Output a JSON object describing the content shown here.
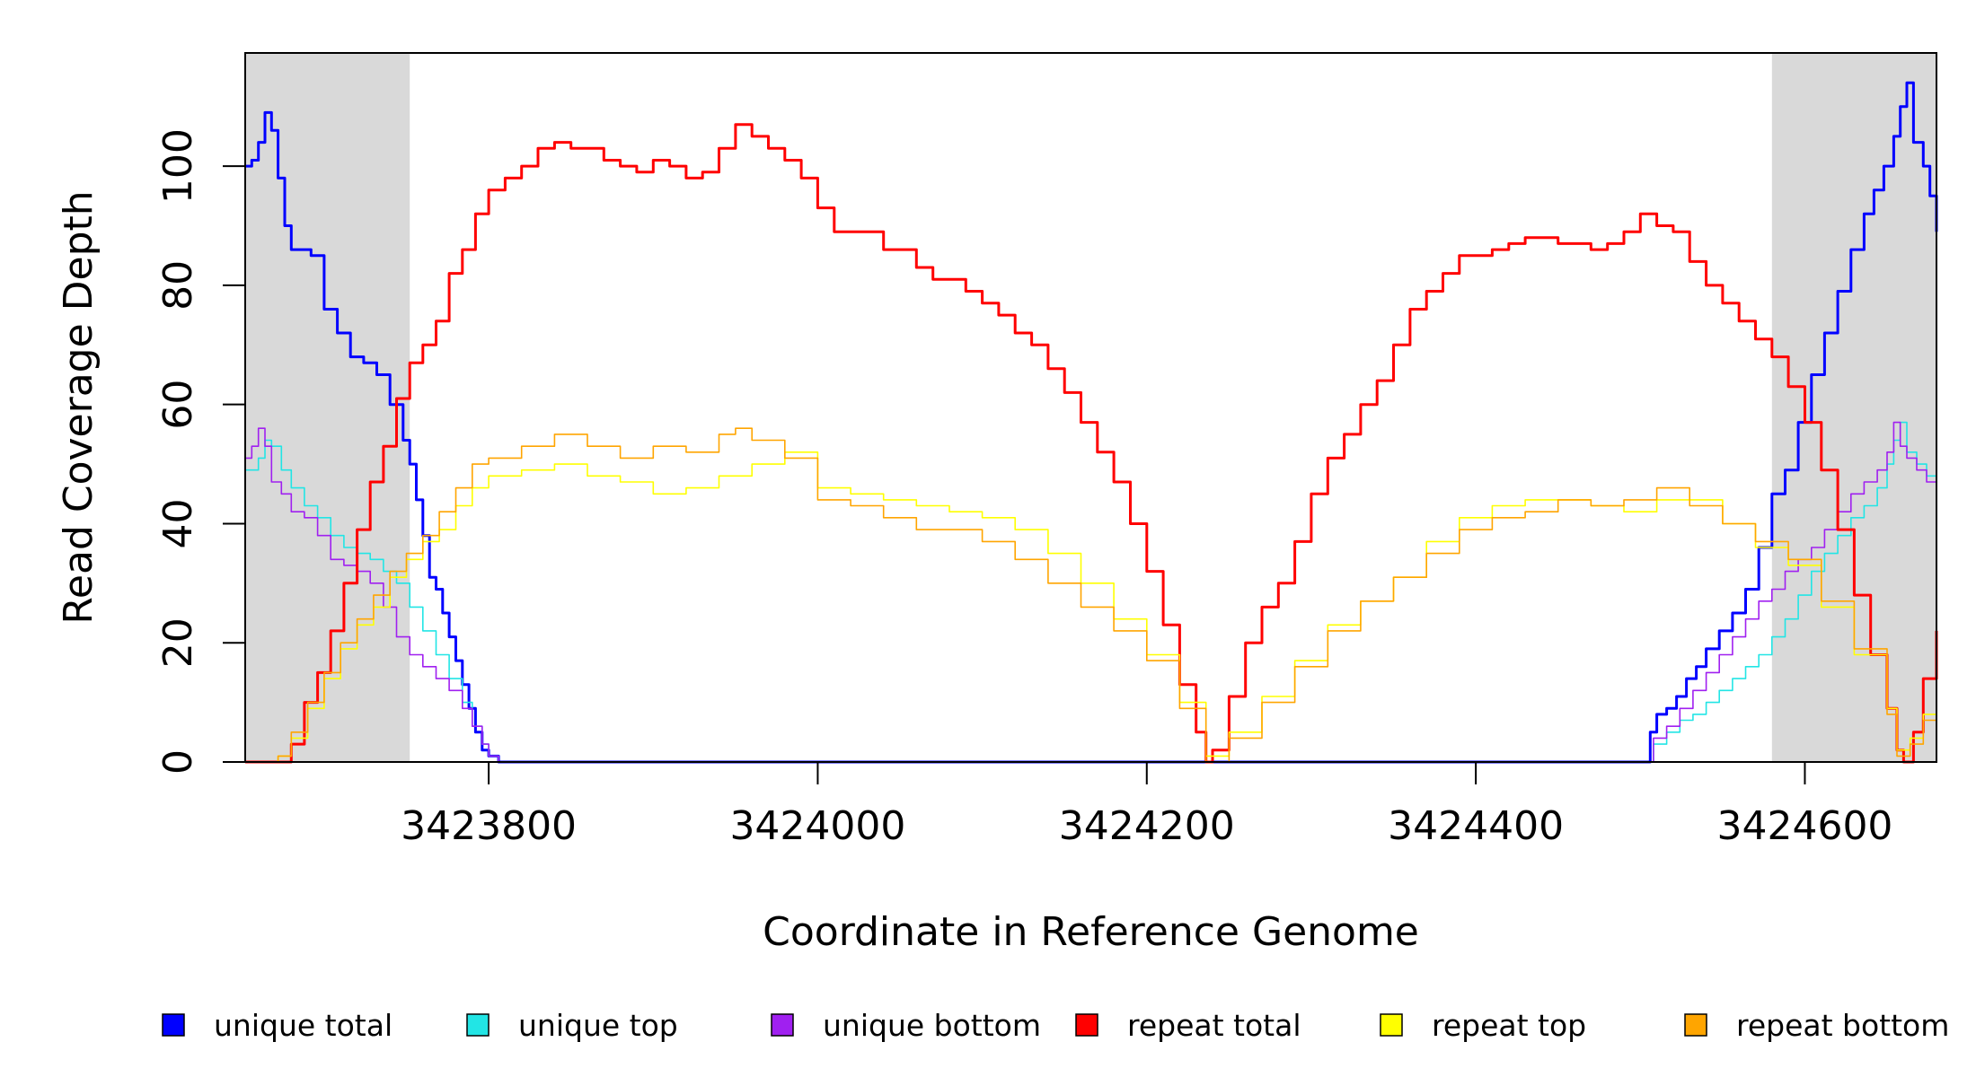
{
  "chart_data": {
    "type": "line",
    "title": "",
    "xlabel": "Coordinate in Reference Genome",
    "ylabel": "Read Coverage Depth",
    "xlim": [
      3423652,
      3424680
    ],
    "ylim": [
      0,
      119
    ],
    "x_ticks": [
      3423800,
      3424000,
      3424200,
      3424400,
      3424600
    ],
    "x_tick_labels": [
      "3423800",
      "3424000",
      "3424200",
      "3424400",
      "3424600"
    ],
    "y_ticks": [
      0,
      20,
      40,
      60,
      80,
      100
    ],
    "y_tick_labels": [
      "0",
      "20",
      "40",
      "60",
      "80",
      "100"
    ],
    "grid": false,
    "legend_position": "bottom",
    "shaded_regions": [
      {
        "x": [
          3423652,
          3423752
        ],
        "color": "#d9d9d9"
      },
      {
        "x": [
          3424580,
          3424680
        ],
        "color": "#d9d9d9"
      }
    ],
    "series": [
      {
        "name": "unique total",
        "color": "#0000ff",
        "width": 3,
        "x": [
          3423652,
          3423656,
          3423660,
          3423664,
          3423668,
          3423672,
          3423676,
          3423680,
          3423684,
          3423692,
          3423700,
          3423708,
          3423716,
          3423724,
          3423732,
          3423740,
          3423748,
          3423752,
          3423756,
          3423760,
          3423764,
          3423768,
          3423772,
          3423776,
          3423780,
          3423784,
          3423788,
          3423792,
          3423796,
          3423800,
          3423806,
          3423812,
          3423820,
          3424200,
          3424400,
          3424500,
          3424506,
          3424510,
          3424516,
          3424522,
          3424528,
          3424534,
          3424540,
          3424548,
          3424556,
          3424564,
          3424572,
          3424580,
          3424588,
          3424596,
          3424604,
          3424612,
          3424620,
          3424628,
          3424636,
          3424642,
          3424648,
          3424654,
          3424658,
          3424662,
          3424666,
          3424672,
          3424676,
          3424680
        ],
        "y": [
          100,
          101,
          104,
          109,
          106,
          98,
          90,
          86,
          86,
          85,
          76,
          72,
          68,
          67,
          65,
          60,
          54,
          50,
          44,
          38,
          31,
          29,
          25,
          21,
          17,
          13,
          9,
          5,
          2,
          1,
          0,
          0,
          0,
          0,
          0,
          0,
          5,
          8,
          9,
          11,
          14,
          16,
          19,
          22,
          25,
          29,
          36,
          45,
          49,
          57,
          65,
          72,
          79,
          86,
          92,
          96,
          100,
          105,
          110,
          114,
          104,
          100,
          95,
          89
        ]
      },
      {
        "name": "unique top",
        "color": "#22e5e5",
        "width": 1.6,
        "x": [
          3423652,
          3423660,
          3423664,
          3423668,
          3423674,
          3423680,
          3423688,
          3423696,
          3423704,
          3423712,
          3423720,
          3423728,
          3423736,
          3423744,
          3423752,
          3423760,
          3423768,
          3423776,
          3423784,
          3423790,
          3423796,
          3423800,
          3423806,
          3424200,
          3424500,
          3424508,
          3424516,
          3424524,
          3424532,
          3424540,
          3424548,
          3424556,
          3424564,
          3424572,
          3424580,
          3424588,
          3424596,
          3424604,
          3424612,
          3424620,
          3424628,
          3424636,
          3424644,
          3424650,
          3424654,
          3424658,
          3424662,
          3424668,
          3424674,
          3424680
        ],
        "y": [
          49,
          51,
          54,
          53,
          49,
          46,
          43,
          41,
          38,
          36,
          35,
          34,
          32,
          30,
          26,
          22,
          18,
          14,
          10,
          6,
          3,
          1,
          0,
          0,
          0,
          3,
          5,
          7,
          8,
          10,
          12,
          14,
          16,
          18,
          21,
          24,
          28,
          32,
          35,
          38,
          41,
          43,
          46,
          50,
          54,
          57,
          52,
          50,
          48,
          43
        ]
      },
      {
        "name": "unique bottom",
        "color": "#a020f0",
        "width": 1.6,
        "x": [
          3423652,
          3423656,
          3423660,
          3423664,
          3423668,
          3423674,
          3423680,
          3423688,
          3423696,
          3423704,
          3423712,
          3423720,
          3423728,
          3423736,
          3423744,
          3423752,
          3423760,
          3423768,
          3423776,
          3423784,
          3423790,
          3423796,
          3423800,
          3423806,
          3424200,
          3424500,
          3424508,
          3424516,
          3424524,
          3424532,
          3424540,
          3424548,
          3424556,
          3424564,
          3424572,
          3424580,
          3424588,
          3424596,
          3424604,
          3424612,
          3424620,
          3424628,
          3424636,
          3424644,
          3424650,
          3424654,
          3424658,
          3424662,
          3424668,
          3424674,
          3424680
        ],
        "y": [
          51,
          53,
          56,
          53,
          47,
          45,
          42,
          41,
          38,
          34,
          33,
          32,
          30,
          26,
          21,
          18,
          16,
          14,
          12,
          9,
          6,
          3,
          1,
          0,
          0,
          0,
          4,
          6,
          9,
          12,
          15,
          18,
          21,
          24,
          27,
          29,
          32,
          34,
          36,
          39,
          42,
          45,
          47,
          49,
          52,
          57,
          53,
          51,
          49,
          47,
          43
        ]
      },
      {
        "name": "repeat total",
        "color": "#ff0000",
        "width": 3,
        "x": [
          3423652,
          3423660,
          3423666,
          3423672,
          3423680,
          3423688,
          3423696,
          3423704,
          3423712,
          3423720,
          3423728,
          3423736,
          3423744,
          3423752,
          3423760,
          3423768,
          3423776,
          3423784,
          3423792,
          3423800,
          3423810,
          3423820,
          3423830,
          3423840,
          3423850,
          3423860,
          3423870,
          3423880,
          3423890,
          3423900,
          3423910,
          3423920,
          3423930,
          3423940,
          3423950,
          3423960,
          3423970,
          3423980,
          3423990,
          3424000,
          3424010,
          3424020,
          3424030,
          3424040,
          3424050,
          3424060,
          3424070,
          3424080,
          3424090,
          3424100,
          3424110,
          3424120,
          3424130,
          3424140,
          3424150,
          3424160,
          3424170,
          3424180,
          3424190,
          3424200,
          3424210,
          3424220,
          3424230,
          3424236,
          3424240,
          3424250,
          3424260,
          3424270,
          3424280,
          3424290,
          3424300,
          3424310,
          3424320,
          3424330,
          3424340,
          3424350,
          3424360,
          3424370,
          3424380,
          3424390,
          3424400,
          3424410,
          3424420,
          3424430,
          3424440,
          3424450,
          3424460,
          3424470,
          3424480,
          3424490,
          3424500,
          3424510,
          3424520,
          3424530,
          3424540,
          3424550,
          3424560,
          3424570,
          3424580,
          3424590,
          3424600,
          3424610,
          3424620,
          3424630,
          3424640,
          3424650,
          3424656,
          3424660,
          3424666,
          3424672,
          3424680
        ],
        "y": [
          0,
          0,
          0,
          0,
          3,
          10,
          15,
          22,
          30,
          39,
          47,
          53,
          61,
          67,
          70,
          74,
          82,
          86,
          92,
          96,
          98,
          100,
          103,
          104,
          103,
          103,
          101,
          100,
          99,
          101,
          100,
          98,
          99,
          103,
          107,
          105,
          103,
          101,
          98,
          93,
          89,
          89,
          89,
          86,
          86,
          83,
          81,
          81,
          79,
          77,
          75,
          72,
          70,
          66,
          62,
          57,
          52,
          47,
          40,
          32,
          23,
          13,
          5,
          0,
          2,
          11,
          20,
          26,
          30,
          37,
          45,
          51,
          55,
          60,
          64,
          70,
          76,
          79,
          82,
          85,
          85,
          86,
          87,
          88,
          88,
          87,
          87,
          86,
          87,
          89,
          92,
          90,
          89,
          84,
          80,
          77,
          74,
          71,
          68,
          63,
          57,
          49,
          39,
          28,
          18,
          9,
          2,
          0,
          5,
          14,
          22
        ]
      },
      {
        "name": "repeat top",
        "color": "#ffff00",
        "width": 1.6,
        "x": [
          3423652,
          3423664,
          3423672,
          3423680,
          3423690,
          3423700,
          3423710,
          3423720,
          3423730,
          3423740,
          3423750,
          3423760,
          3423770,
          3423780,
          3423790,
          3423800,
          3423820,
          3423840,
          3423860,
          3423880,
          3423900,
          3423920,
          3423940,
          3423960,
          3423980,
          3424000,
          3424020,
          3424040,
          3424060,
          3424080,
          3424100,
          3424120,
          3424140,
          3424160,
          3424180,
          3424200,
          3424220,
          3424236,
          3424250,
          3424270,
          3424290,
          3424310,
          3424330,
          3424350,
          3424370,
          3424390,
          3424410,
          3424430,
          3424450,
          3424470,
          3424490,
          3424510,
          3424530,
          3424550,
          3424570,
          3424590,
          3424610,
          3424630,
          3424650,
          3424656,
          3424664,
          3424672,
          3424680
        ],
        "y": [
          0,
          0,
          1,
          4,
          9,
          14,
          19,
          23,
          26,
          31,
          34,
          37,
          39,
          43,
          46,
          48,
          49,
          50,
          48,
          47,
          45,
          46,
          48,
          50,
          52,
          46,
          45,
          44,
          43,
          42,
          41,
          39,
          35,
          30,
          24,
          18,
          10,
          1,
          5,
          11,
          17,
          23,
          27,
          31,
          37,
          41,
          43,
          44,
          44,
          43,
          42,
          44,
          44,
          40,
          36,
          33,
          26,
          18,
          9,
          2,
          4,
          8,
          11
        ]
      },
      {
        "name": "repeat bottom",
        "color": "#ffa500",
        "width": 1.6,
        "x": [
          3423652,
          3423664,
          3423672,
          3423680,
          3423690,
          3423700,
          3423710,
          3423720,
          3423730,
          3423740,
          3423750,
          3423760,
          3423770,
          3423780,
          3423790,
          3423800,
          3423820,
          3423840,
          3423860,
          3423880,
          3423900,
          3423920,
          3423940,
          3423950,
          3423960,
          3423980,
          3424000,
          3424020,
          3424040,
          3424060,
          3424080,
          3424100,
          3424120,
          3424140,
          3424160,
          3424180,
          3424200,
          3424220,
          3424236,
          3424250,
          3424270,
          3424290,
          3424310,
          3424330,
          3424350,
          3424370,
          3424390,
          3424410,
          3424430,
          3424450,
          3424470,
          3424490,
          3424510,
          3424530,
          3424550,
          3424570,
          3424590,
          3424610,
          3424630,
          3424650,
          3424656,
          3424664,
          3424672,
          3424680
        ],
        "y": [
          0,
          0,
          1,
          5,
          10,
          15,
          20,
          24,
          28,
          32,
          35,
          38,
          42,
          46,
          50,
          51,
          53,
          55,
          53,
          51,
          53,
          52,
          55,
          56,
          54,
          51,
          44,
          43,
          41,
          39,
          39,
          37,
          34,
          30,
          26,
          22,
          17,
          9,
          0,
          4,
          10,
          16,
          22,
          27,
          31,
          35,
          39,
          41,
          42,
          44,
          43,
          44,
          46,
          43,
          40,
          37,
          34,
          27,
          19,
          8,
          1,
          3,
          7,
          10
        ]
      }
    ]
  },
  "legend": [
    {
      "label": "unique total",
      "color": "#0000ff"
    },
    {
      "label": "unique top",
      "color": "#22e5e5"
    },
    {
      "label": "unique bottom",
      "color": "#a020f0"
    },
    {
      "label": "repeat total",
      "color": "#ff0000"
    },
    {
      "label": "repeat top",
      "color": "#ffff00"
    },
    {
      "label": "repeat bottom",
      "color": "#ffa500"
    }
  ]
}
